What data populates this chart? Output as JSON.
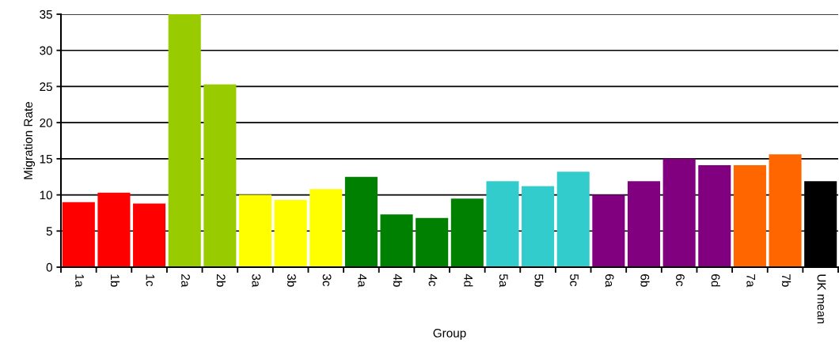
{
  "chart_data": {
    "type": "bar",
    "xlabel": "Group",
    "ylabel": "Migration Rate",
    "categories": [
      "1a",
      "1b",
      "1c",
      "2a",
      "2b",
      "3a",
      "3b",
      "3c",
      "4a",
      "4b",
      "4c",
      "4d",
      "5a",
      "5b",
      "5c",
      "6a",
      "6b",
      "6c",
      "6d",
      "7a",
      "7b",
      "UK mean"
    ],
    "values": [
      9.0,
      10.3,
      8.8,
      35,
      25.3,
      10.0,
      9.3,
      10.8,
      12.5,
      7.3,
      6.8,
      9.5,
      11.9,
      11.2,
      13.2,
      10.0,
      11.9,
      15.0,
      14.1,
      14.1,
      15.6,
      11.9
    ],
    "colors": [
      "#ff0000",
      "#ff0000",
      "#ff0000",
      "#99cc00",
      "#99cc00",
      "#ffff00",
      "#ffff00",
      "#ffff00",
      "#008000",
      "#008000",
      "#008000",
      "#008000",
      "#33cccc",
      "#33cccc",
      "#33cccc",
      "#800080",
      "#800080",
      "#800080",
      "#800080",
      "#ff6600",
      "#ff6600",
      "#000000"
    ],
    "ylim": [
      0,
      35
    ],
    "yticks": [
      0,
      5,
      10,
      15,
      20,
      25,
      30,
      35
    ],
    "grid": "y",
    "legend": false
  }
}
